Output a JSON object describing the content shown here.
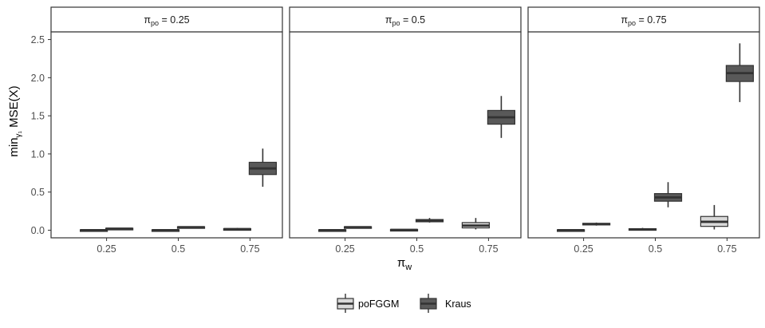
{
  "chart_data": {
    "type": "boxplot",
    "facet_variable_symbol": "π",
    "facet_variable_subscript": "po",
    "facets": [
      {
        "value": "0.25"
      },
      {
        "value": "0.5"
      },
      {
        "value": "0.75"
      }
    ],
    "categories": [
      "0.25",
      "0.5",
      "0.75"
    ],
    "xlabel_symbol": "π",
    "xlabel_subscript": "w",
    "ylabel_prefix": "min",
    "ylabel_subscript": "γ₁",
    "ylabel_suffix": " MSE(X)",
    "ylim": [
      -0.1,
      2.6
    ],
    "yticks": [
      "0.0",
      "0.5",
      "1.0",
      "1.5",
      "2.0",
      "2.5"
    ],
    "series": [
      {
        "name": "poFGGM",
        "color": "#d9d9d9"
      },
      {
        "name": "Kraus",
        "color": "#595959"
      }
    ],
    "boxes": [
      {
        "facet": 0,
        "category": 0,
        "series": 0,
        "min": 0.0,
        "q1": 0.0,
        "median": 0.0,
        "q3": 0.005,
        "max": 0.01
      },
      {
        "facet": 0,
        "category": 0,
        "series": 1,
        "min": 0.01,
        "q1": 0.015,
        "median": 0.02,
        "q3": 0.025,
        "max": 0.03
      },
      {
        "facet": 0,
        "category": 1,
        "series": 0,
        "min": 0.0,
        "q1": 0.0,
        "median": 0.0,
        "q3": 0.005,
        "max": 0.01
      },
      {
        "facet": 0,
        "category": 1,
        "series": 1,
        "min": 0.03,
        "q1": 0.035,
        "median": 0.04,
        "q3": 0.045,
        "max": 0.05
      },
      {
        "facet": 0,
        "category": 2,
        "series": 0,
        "min": 0.005,
        "q1": 0.01,
        "median": 0.015,
        "q3": 0.02,
        "max": 0.03
      },
      {
        "facet": 0,
        "category": 2,
        "series": 1,
        "min": 0.57,
        "q1": 0.73,
        "median": 0.81,
        "q3": 0.89,
        "max": 1.07
      },
      {
        "facet": 1,
        "category": 0,
        "series": 0,
        "min": 0.0,
        "q1": 0.0,
        "median": 0.0,
        "q3": 0.005,
        "max": 0.01
      },
      {
        "facet": 1,
        "category": 0,
        "series": 1,
        "min": 0.03,
        "q1": 0.035,
        "median": 0.04,
        "q3": 0.045,
        "max": 0.05
      },
      {
        "facet": 1,
        "category": 1,
        "series": 0,
        "min": 0.0,
        "q1": 0.0,
        "median": 0.005,
        "q3": 0.01,
        "max": 0.015
      },
      {
        "facet": 1,
        "category": 1,
        "series": 1,
        "min": 0.1,
        "q1": 0.11,
        "median": 0.125,
        "q3": 0.14,
        "max": 0.16
      },
      {
        "facet": 1,
        "category": 2,
        "series": 0,
        "min": 0.01,
        "q1": 0.03,
        "median": 0.06,
        "q3": 0.1,
        "max": 0.16
      },
      {
        "facet": 1,
        "category": 2,
        "series": 1,
        "min": 1.21,
        "q1": 1.39,
        "median": 1.48,
        "q3": 1.57,
        "max": 1.76
      },
      {
        "facet": 2,
        "category": 0,
        "series": 0,
        "min": 0.0,
        "q1": 0.0,
        "median": 0.0,
        "q3": 0.005,
        "max": 0.01
      },
      {
        "facet": 2,
        "category": 0,
        "series": 1,
        "min": 0.06,
        "q1": 0.07,
        "median": 0.08,
        "q3": 0.09,
        "max": 0.1
      },
      {
        "facet": 2,
        "category": 1,
        "series": 0,
        "min": 0.0,
        "q1": 0.005,
        "median": 0.01,
        "q3": 0.02,
        "max": 0.03
      },
      {
        "facet": 2,
        "category": 1,
        "series": 1,
        "min": 0.3,
        "q1": 0.38,
        "median": 0.43,
        "q3": 0.48,
        "max": 0.63
      },
      {
        "facet": 2,
        "category": 2,
        "series": 0,
        "min": 0.01,
        "q1": 0.05,
        "median": 0.11,
        "q3": 0.18,
        "max": 0.33
      },
      {
        "facet": 2,
        "category": 2,
        "series": 1,
        "min": 1.68,
        "q1": 1.95,
        "median": 2.06,
        "q3": 2.16,
        "max": 2.45
      }
    ],
    "grid": false,
    "legend_position": "bottom"
  }
}
